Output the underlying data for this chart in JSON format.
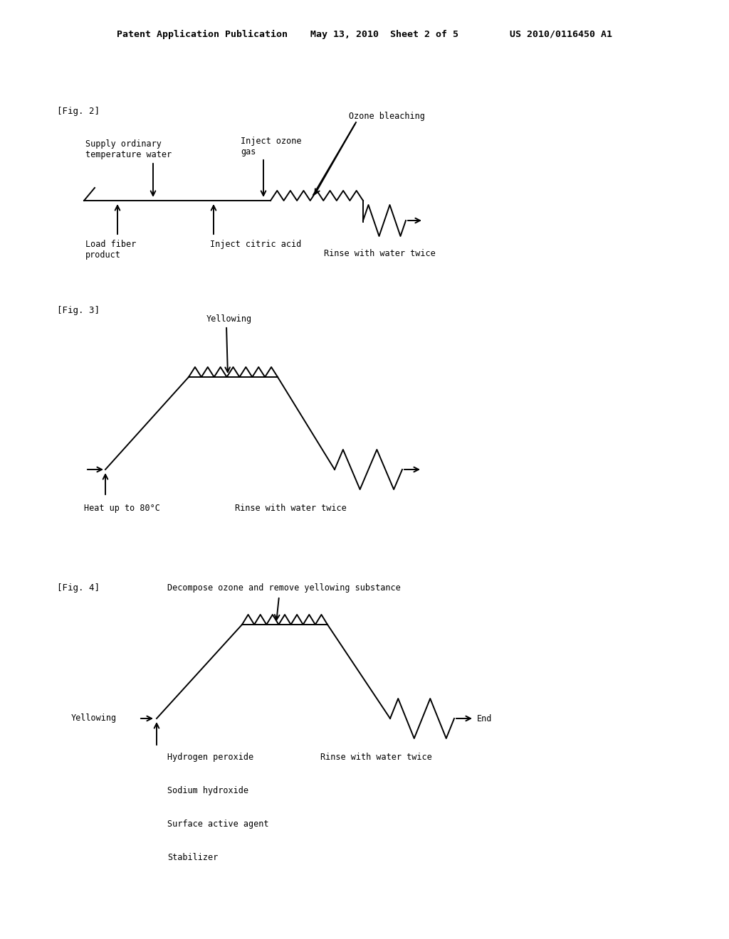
{
  "bg_color": "#ffffff",
  "font_family": "monospace",
  "lw": 1.4,
  "header": "Patent Application Publication    May 13, 2010  Sheet 2 of 5         US 2010/0116450 A1",
  "fig2_label": "[Fig. 2]",
  "fig3_label": "[Fig. 3]",
  "fig4_label": "[Fig. 4]"
}
